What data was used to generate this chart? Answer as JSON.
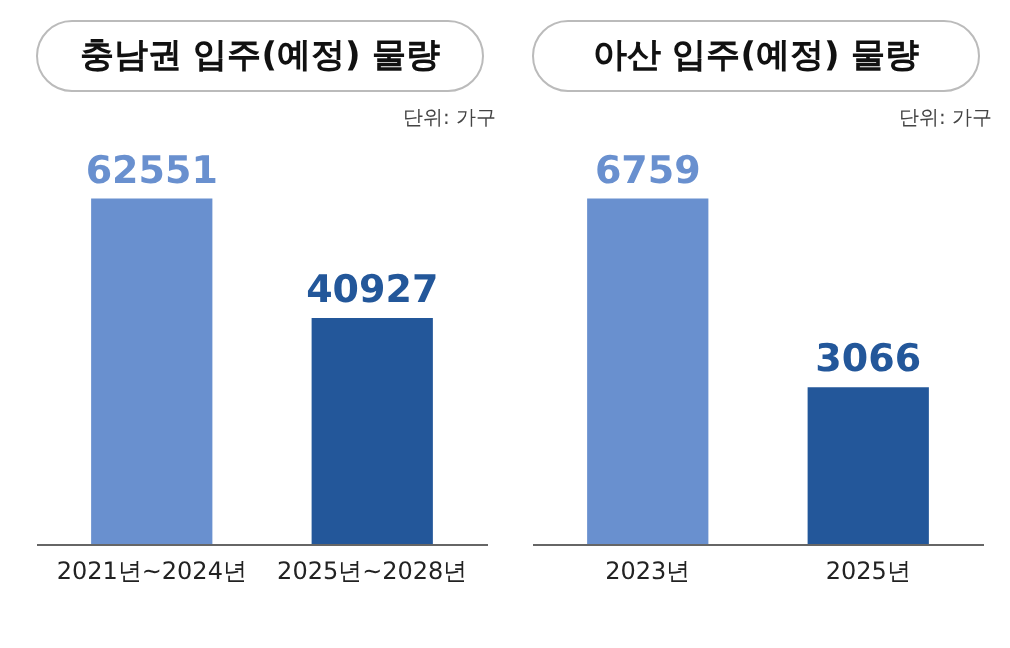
{
  "chart_data": [
    {
      "type": "bar",
      "title": "충남권 입주(예정) 물량",
      "annotations": [
        "단위: 가구"
      ],
      "categories": [
        "2021년~2024년",
        "2025년~2028년"
      ],
      "values": [
        62551,
        40927
      ],
      "colors": [
        "#6990cf",
        "#23579a"
      ],
      "data_labels": true
    },
    {
      "type": "bar",
      "title": "아산 입주(예정) 물량",
      "annotations": [
        "단위: 가구"
      ],
      "categories": [
        "2023년",
        "2025년"
      ],
      "values": [
        6759,
        3066
      ],
      "colors": [
        "#6990cf",
        "#23579a"
      ],
      "data_labels": true
    }
  ]
}
